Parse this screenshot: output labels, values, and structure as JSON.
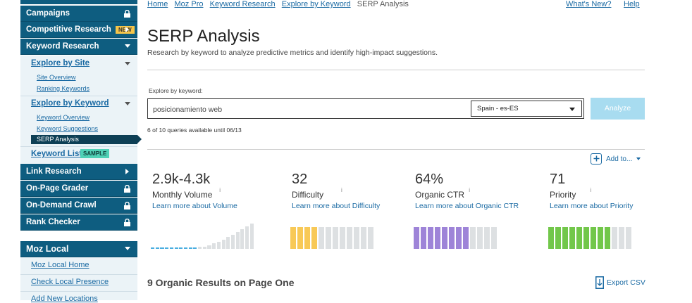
{
  "sidebar": {
    "campaigns": "Campaigns",
    "competitive_research": "Competitive Research",
    "new_badge": "NEW",
    "keyword_research": "Keyword Research",
    "explore_by_site": "Explore by Site",
    "site_links": [
      "Site Overview",
      "Ranking Keywords"
    ],
    "explore_by_keyword": "Explore by Keyword",
    "keyword_links": [
      "Keyword Overview",
      "Keyword Suggestions",
      "SERP Analysis"
    ],
    "keyword_lists": "Keyword Lists",
    "sample_badge": "SAMPLE",
    "tools": [
      "Link Research",
      "On-Page Grader",
      "On-Demand Crawl",
      "Rank Checker"
    ],
    "moz_local": "Moz Local",
    "local_links": [
      "Moz Local Home",
      "Check Local Presence",
      "Add New Locations"
    ]
  },
  "breadcrumb": [
    "Home",
    "Moz Pro",
    "Keyword Research",
    "Explore by Keyword",
    "SERP Analysis"
  ],
  "header_links": [
    "What's New?",
    "Help"
  ],
  "title": "SERP Analysis",
  "subtitle": "Research by keyword to analyze predictive metrics and identify high-impact suggestions.",
  "search": {
    "label": "Explore by keyword:",
    "keyword": "posicionamiento web",
    "locale": "Spain - es-ES",
    "button": "Analyze",
    "quota": "6 of 10 queries available until 06/13"
  },
  "add_to": "Add to...",
  "metrics": [
    {
      "value": "2.9k-4.3k",
      "label": "Monthly Volume",
      "link": "Learn more about Volume"
    },
    {
      "value": "32",
      "label": "Difficulty",
      "link": "Learn more about Difficulty"
    },
    {
      "value": "64%",
      "label": "Organic CTR",
      "link": "Learn more about Organic CTR"
    },
    {
      "value": "71",
      "label": "Priority",
      "link": "Learn more about Priority"
    }
  ],
  "results_heading": "9 Organic Results on Page One",
  "export": "Export CSV"
}
